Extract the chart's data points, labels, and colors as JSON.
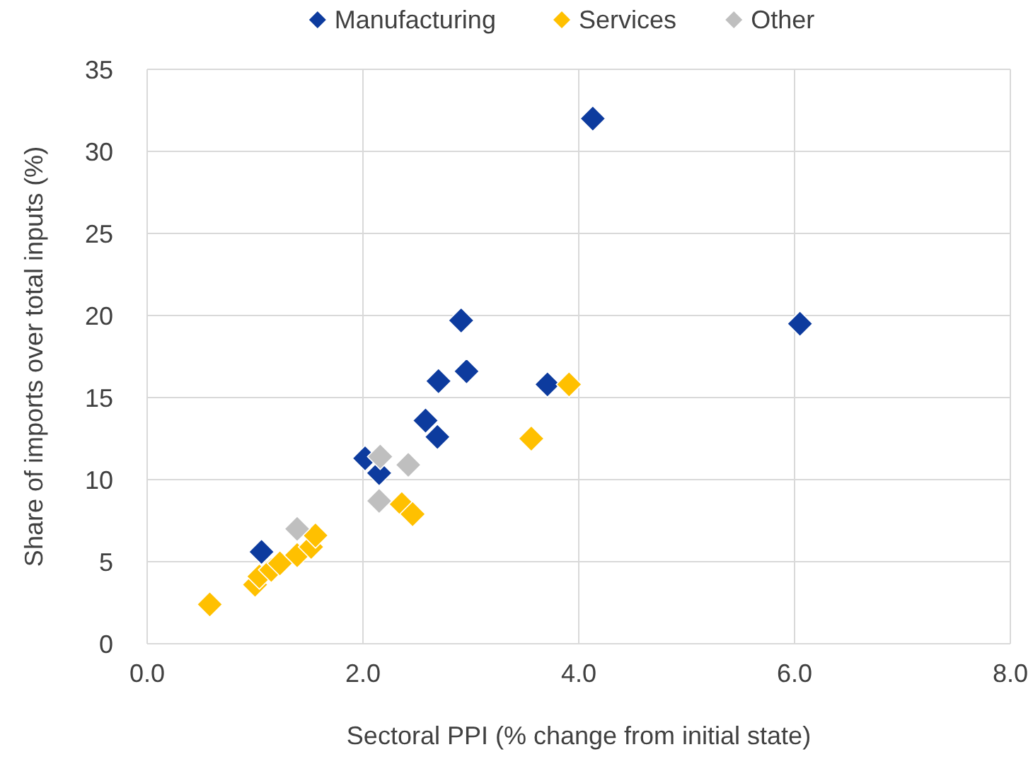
{
  "chart_data": {
    "type": "scatter",
    "xlabel": "Sectoral PPI (% change from initial state)",
    "ylabel": "Share of imports over total inputs (%)",
    "xlim": [
      0,
      8
    ],
    "xticks": [
      {
        "value": 0,
        "label": "0.0"
      },
      {
        "value": 2,
        "label": "2.0"
      },
      {
        "value": 4,
        "label": "4.0"
      },
      {
        "value": 6,
        "label": "6.0"
      },
      {
        "value": 8,
        "label": "8.0"
      }
    ],
    "ylim": [
      0,
      35
    ],
    "yticks": [
      0,
      5,
      10,
      15,
      20,
      25,
      30,
      35
    ],
    "grid": true,
    "legend": "top",
    "marker": "diamond",
    "series": [
      {
        "name": "Manufacturing",
        "color": "#0d3b9e",
        "x": [
          4.13,
          6.05,
          2.91,
          2.96,
          2.7,
          3.71,
          2.58,
          2.69,
          2.02,
          2.15,
          1.06
        ],
        "values": [
          32,
          19.5,
          19.7,
          16.6,
          16,
          15.8,
          13.6,
          12.6,
          11.3,
          10.4,
          5.6
        ]
      },
      {
        "name": "Services",
        "color": "#ffc000",
        "x": [
          3.91,
          3.56,
          2.36,
          2.46,
          0.58,
          1.0,
          1.04,
          1.15,
          1.23,
          1.39,
          1.52,
          1.56
        ],
        "values": [
          15.8,
          12.5,
          8.5,
          7.9,
          2.4,
          3.6,
          4.1,
          4.5,
          4.9,
          5.4,
          5.9,
          6.6
        ]
      },
      {
        "name": "Other",
        "color": "#bfbfbf",
        "x": [
          1.39,
          2.15,
          2.16,
          2.42
        ],
        "values": [
          7.0,
          8.7,
          11.4,
          10.9
        ]
      }
    ]
  }
}
